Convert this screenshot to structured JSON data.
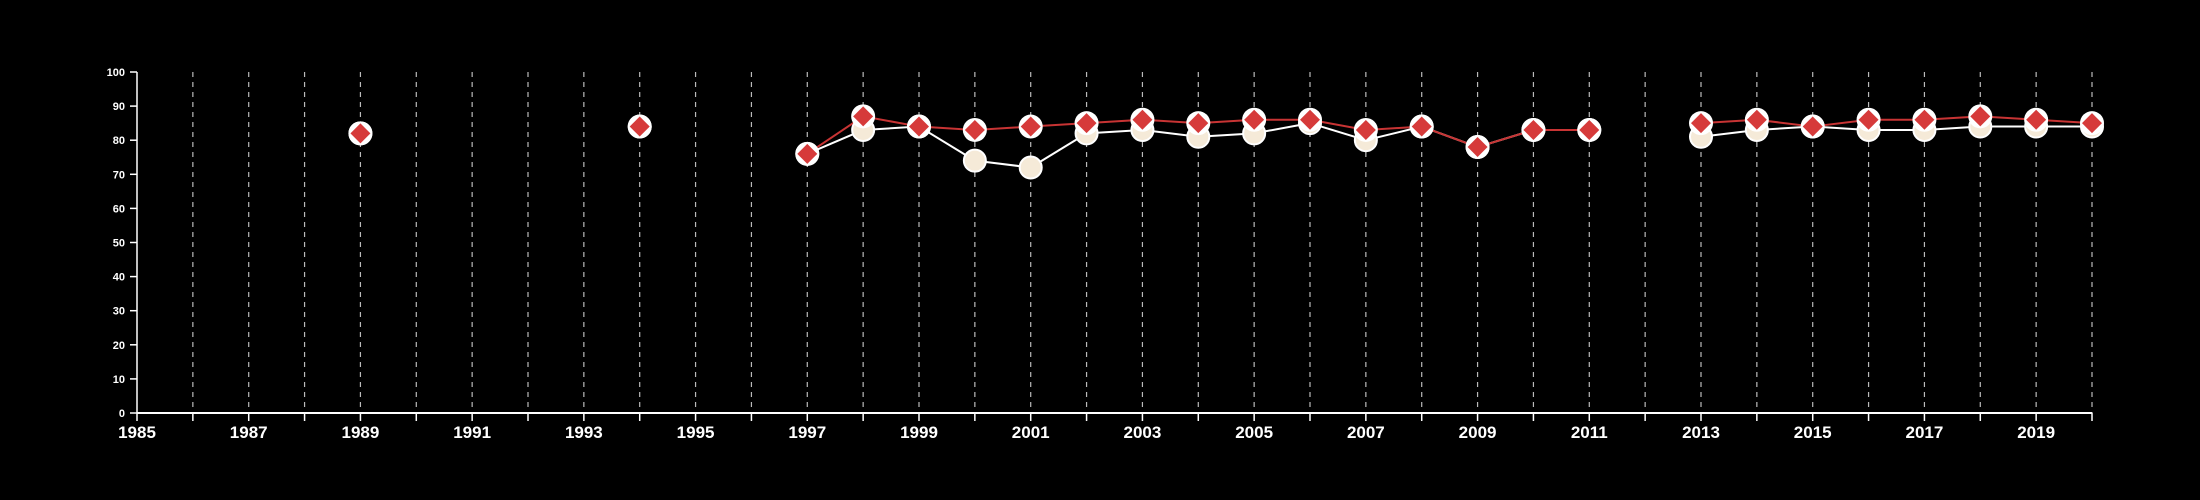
{
  "colors": {
    "background": "#000000",
    "axis": "#ffffff",
    "grid": "#bbbbbb",
    "series_circle_fill": "#f5ead8",
    "series_circle_stroke": "#ffffff",
    "series_circle_line": "#ffffff",
    "series_diamond_fill": "#d63a3a",
    "series_diamond_line": "#c83434",
    "marker_halo": "#ffffff"
  },
  "chart_data": {
    "type": "line",
    "title": "",
    "xlabel": "",
    "ylabel": "",
    "xlim": [
      1985,
      2020
    ],
    "ylim": [
      0,
      100
    ],
    "yticks": [
      0,
      10,
      20,
      30,
      40,
      50,
      60,
      70,
      80,
      90,
      100
    ],
    "xtick_labels": [
      1985,
      1987,
      1989,
      1991,
      1993,
      1995,
      1997,
      1999,
      2001,
      2003,
      2005,
      2007,
      2009,
      2011,
      2013,
      2015,
      2017,
      2019
    ],
    "grid": "vertical dashed lines at every year",
    "legend": "none",
    "x": [
      1989,
      1994,
      1997,
      1998,
      1999,
      2000,
      2001,
      2002,
      2003,
      2004,
      2005,
      2006,
      2007,
      2008,
      2009,
      2010,
      2011,
      2013,
      2014,
      2015,
      2016,
      2017,
      2018,
      2019,
      2020
    ],
    "series": [
      {
        "marker": "circle",
        "values": [
          82,
          84,
          76,
          83,
          84,
          74,
          72,
          82,
          83,
          81,
          82,
          85,
          80,
          84,
          78,
          83,
          83,
          81,
          83,
          84,
          83,
          83,
          84,
          84,
          84
        ]
      },
      {
        "marker": "diamond",
        "values": [
          82,
          84,
          76,
          87,
          84,
          83,
          84,
          85,
          86,
          85,
          86,
          86,
          83,
          84,
          78,
          83,
          83,
          85,
          86,
          84,
          86,
          86,
          87,
          86,
          85
        ]
      }
    ]
  }
}
